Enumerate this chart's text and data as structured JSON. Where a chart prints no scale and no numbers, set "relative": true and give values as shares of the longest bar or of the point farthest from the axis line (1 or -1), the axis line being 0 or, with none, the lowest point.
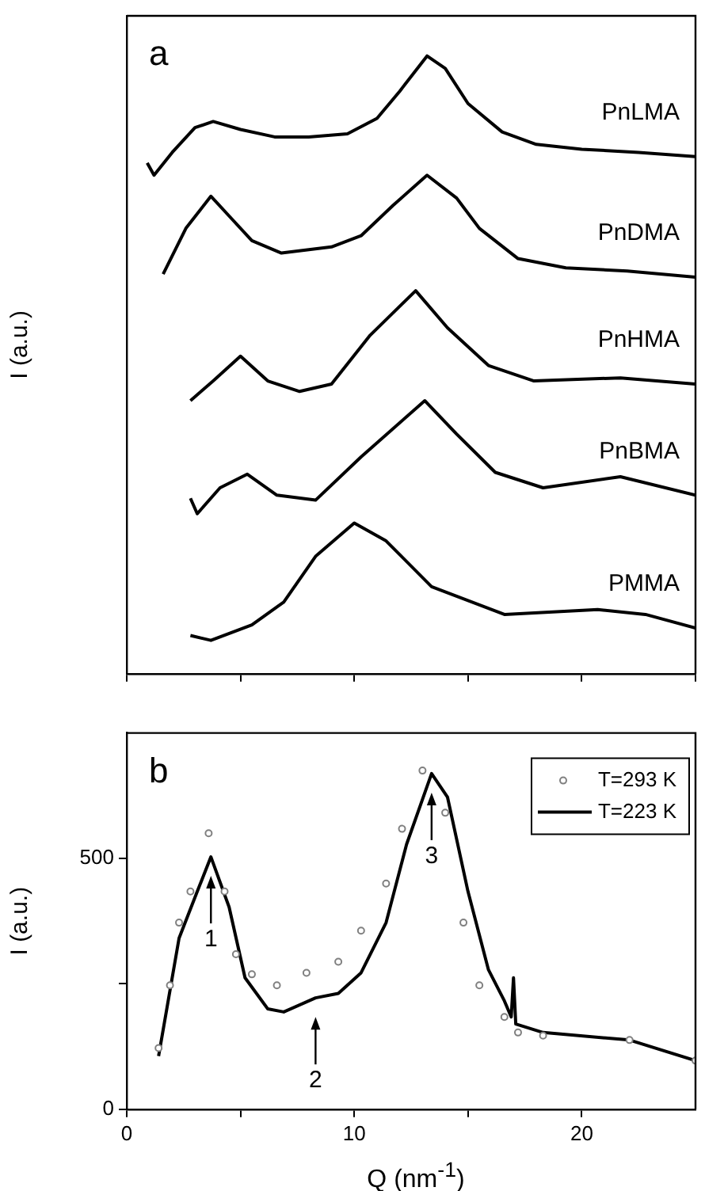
{
  "chart_data": [
    {
      "type": "line",
      "ylabel": "I (a.u.)",
      "annotations": [
        "a"
      ],
      "relative": true,
      "xlim": [
        0,
        25
      ],
      "xticks": [
        0,
        5,
        10,
        15,
        20,
        25
      ],
      "tick_labels": false,
      "legend": false,
      "series": [
        {
          "name": "PnLMA",
          "color": "#000000",
          "x": [
            0.9,
            1.2,
            2,
            3,
            3.8,
            5,
            6.5,
            8,
            9.7,
            11,
            12,
            13.2,
            14,
            15,
            16.5,
            18,
            20,
            22.5,
            25
          ],
          "values": [
            0.827,
            0.807,
            0.844,
            0.884,
            0.894,
            0.881,
            0.869,
            0.869,
            0.874,
            0.899,
            0.943,
            1.0,
            0.98,
            0.923,
            0.877,
            0.857,
            0.849,
            0.844,
            0.837
          ]
        },
        {
          "name": "PnDMA",
          "color": "#000000",
          "x": [
            1.6,
            2.6,
            3.7,
            4.5,
            5.5,
            6.8,
            9,
            10.3,
            11.7,
            13.2,
            14.5,
            15.5,
            17.2,
            19.3,
            22,
            25
          ],
          "values": [
            0.647,
            0.721,
            0.773,
            0.741,
            0.701,
            0.681,
            0.691,
            0.709,
            0.758,
            0.807,
            0.77,
            0.721,
            0.672,
            0.657,
            0.652,
            0.642
          ]
        },
        {
          "name": "PnHMA",
          "color": "#000000",
          "x": [
            2.8,
            3.8,
            5.0,
            6.2,
            7.6,
            9,
            10.7,
            12.7,
            14.1,
            15.9,
            17.9,
            21.7,
            25
          ],
          "values": [
            0.442,
            0.474,
            0.514,
            0.474,
            0.457,
            0.469,
            0.548,
            0.62,
            0.56,
            0.499,
            0.474,
            0.479,
            0.469
          ]
        },
        {
          "name": "PnBMA",
          "color": "#000000",
          "x": [
            2.8,
            3.1,
            4.1,
            5.3,
            6.6,
            8.3,
            10.3,
            13.1,
            14.5,
            16.2,
            18.3,
            21.7,
            25
          ],
          "values": [
            0.284,
            0.259,
            0.301,
            0.323,
            0.289,
            0.281,
            0.351,
            0.442,
            0.388,
            0.326,
            0.301,
            0.319,
            0.289
          ]
        },
        {
          "name": "PMMA",
          "color": "#000000",
          "x": [
            2.8,
            3.7,
            5.5,
            6.9,
            8.3,
            10,
            11.4,
            13.4,
            16.6,
            20.7,
            22.8,
            25
          ],
          "values": [
            0.062,
            0.054,
            0.079,
            0.116,
            0.19,
            0.244,
            0.215,
            0.141,
            0.096,
            0.104,
            0.096,
            0.074
          ]
        }
      ]
    },
    {
      "type": "line",
      "xlabel": "Q (nm$^{-1}$)",
      "ylabel": "I (a.u.)",
      "annotations": [
        "b",
        {
          "text": "1",
          "x": 3.7,
          "y": 503
        },
        {
          "text": "2",
          "x": 8.3,
          "y": 222
        },
        {
          "text": "3",
          "x": 13.4,
          "y": 669
        }
      ],
      "xlim": [
        0,
        25
      ],
      "xticks": [
        0,
        {
          "value": 5,
          "label": null
        },
        10,
        {
          "value": 15,
          "label": null
        },
        20
      ],
      "ylim": [
        0,
        750
      ],
      "yticks": [
        0,
        {
          "value": 250,
          "label": null
        },
        500
      ],
      "legend": "top right",
      "series": [
        {
          "name": "T=293 K",
          "type": "scatter",
          "marker": "circle",
          "color": "#808080",
          "x": [
            1.4,
            1.9,
            2.3,
            2.8,
            3.6,
            4.3,
            4.8,
            5.5,
            6.6,
            7.9,
            9.3,
            10.3,
            11.4,
            12.1,
            13,
            14,
            14.8,
            15.5,
            16.6,
            17.2,
            18.3,
            22.1,
            25
          ],
          "values": [
            122,
            247,
            372,
            434,
            550,
            434,
            309,
            269,
            247,
            272,
            294,
            356,
            450,
            559,
            675,
            591,
            372,
            247,
            184,
            153,
            147,
            138,
            97
          ]
        },
        {
          "name": "T=223 K",
          "color": "#000000",
          "x": [
            1.4,
            2.3,
            3.1,
            3.7,
            4.5,
            5.2,
            6.2,
            6.9,
            8.3,
            9.3,
            10.3,
            11.4,
            12.3,
            13.4,
            14.1,
            15,
            15.9,
            16.6,
            16.9,
            17,
            17.1,
            18.3,
            22.1,
            25
          ],
          "values": [
            106,
            341,
            434,
            503,
            403,
            262,
            200,
            194,
            222,
            231,
            272,
            372,
            528,
            669,
            622,
            434,
            278,
            216,
            184,
            262,
            170,
            153,
            138,
            97
          ]
        }
      ]
    }
  ]
}
